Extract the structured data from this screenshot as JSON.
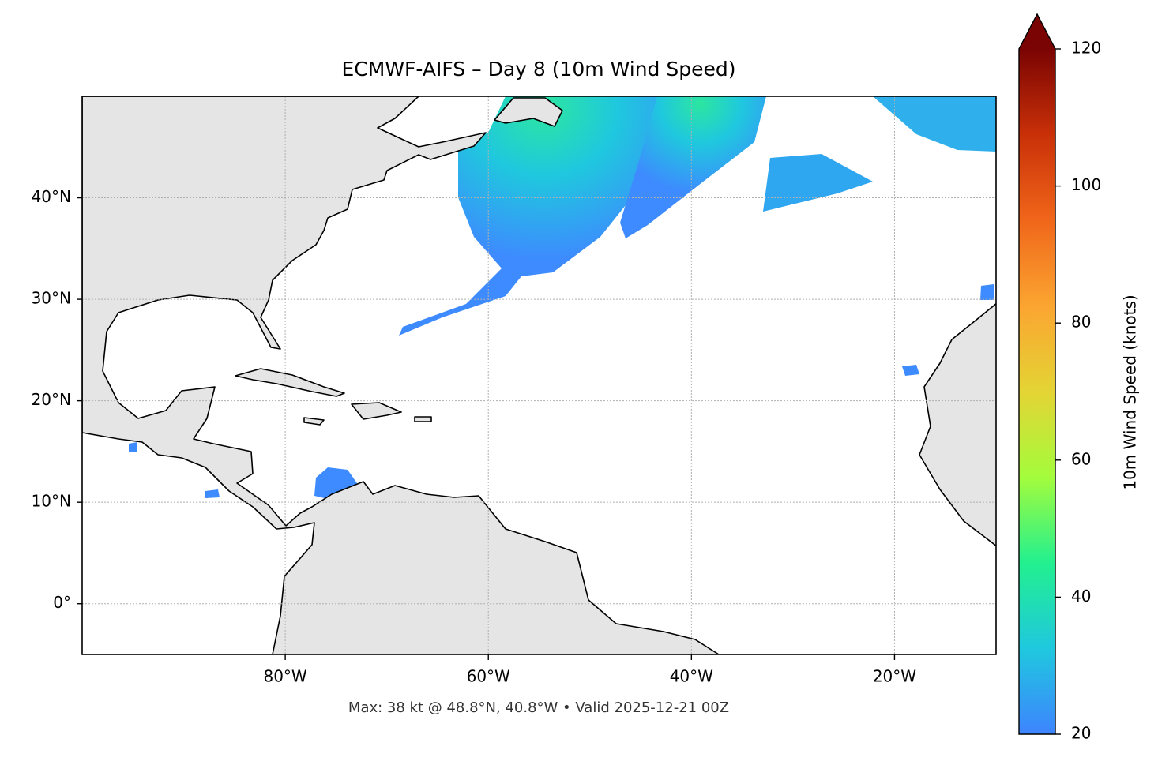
{
  "chart_data": {
    "type": "map",
    "title": "ECMWF-AIFS – Day 8 (10m Wind Speed)",
    "footer": "Max: 38 kt @ 48.8°N, 40.8°W • Valid 2025-12-21 00Z",
    "xlim": [
      -100,
      -10
    ],
    "ylim": [
      -5,
      50
    ],
    "xticks": [
      {
        "value": -80,
        "label": "80°W"
      },
      {
        "value": -60,
        "label": "60°W"
      },
      {
        "value": -40,
        "label": "40°W"
      },
      {
        "value": -20,
        "label": "20°W"
      }
    ],
    "yticks": [
      {
        "value": 0,
        "label": "0°"
      },
      {
        "value": 10,
        "label": "10°N"
      },
      {
        "value": 20,
        "label": "20°N"
      },
      {
        "value": 30,
        "label": "30°N"
      },
      {
        "value": 40,
        "label": "40°N"
      }
    ],
    "grid": true,
    "colorbar": {
      "label": "10m Wind Speed (knots)",
      "lim": [
        20,
        120
      ],
      "ticks": [
        20,
        40,
        60,
        80,
        100,
        120
      ],
      "extend": "max",
      "colors": [
        "#3e84ff",
        "#1fc8de",
        "#22f08f",
        "#a4fc3c",
        "#e4d434",
        "#fba531",
        "#f0661a",
        "#c93008",
        "#7a0403"
      ]
    }
  }
}
